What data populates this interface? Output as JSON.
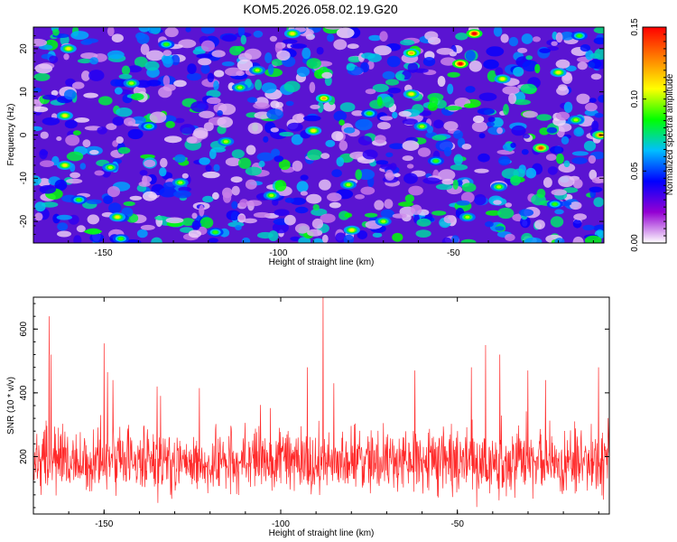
{
  "figure_title": "KOM5.2026.058.02.19.G20",
  "chart_data": [
    {
      "type": "heatmap",
      "xlabel": "Height of straight line (km)",
      "ylabel": "Frequency (Hz)",
      "xlim": [
        -170,
        -7
      ],
      "ylim": [
        -25,
        25
      ],
      "xticks": [
        -150,
        -100,
        -50
      ],
      "yticks": [
        -20,
        -10,
        0,
        10,
        20
      ],
      "colorbar": {
        "label": "Normalized spectral amplitude",
        "range": [
          0.0,
          0.15
        ],
        "ticks": [
          "0.00",
          "0.05",
          "0.10",
          "0.15"
        ],
        "colors": [
          "#ffffff",
          "#9400d3",
          "#0000ff",
          "#00bfff",
          "#00ff00",
          "#ffff00",
          "#ff7f00",
          "#ff0000"
        ]
      },
      "peaks": [
        {
          "x": -44,
          "y": 23.5,
          "value": 0.15
        },
        {
          "x": -48,
          "y": 16.5,
          "value": 0.15
        },
        {
          "x": -25,
          "y": -3.0,
          "value": 0.14
        },
        {
          "x": -8,
          "y": 0.0,
          "value": 0.13
        },
        {
          "x": -62,
          "y": 19.0,
          "value": 0.12
        },
        {
          "x": -96,
          "y": 23.5,
          "value": 0.11
        },
        {
          "x": -87,
          "y": 8.5,
          "value": 0.12
        },
        {
          "x": -90,
          "y": 1.0,
          "value": 0.11
        },
        {
          "x": -160,
          "y": 20.0,
          "value": 0.11
        },
        {
          "x": -161,
          "y": 4.5,
          "value": 0.11
        },
        {
          "x": -161,
          "y": -7.0,
          "value": 0.11
        },
        {
          "x": -148,
          "y": -7.5,
          "value": 0.1
        },
        {
          "x": -146,
          "y": -19.0,
          "value": 0.11
        },
        {
          "x": -111,
          "y": 11.0,
          "value": 0.1
        },
        {
          "x": -106,
          "y": 15.0,
          "value": 0.1
        },
        {
          "x": -115,
          "y": -1.5,
          "value": 0.1
        },
        {
          "x": -128,
          "y": -11.0,
          "value": 0.1
        },
        {
          "x": -102,
          "y": -14.0,
          "value": 0.1
        },
        {
          "x": -79,
          "y": -22.0,
          "value": 0.11
        },
        {
          "x": -70,
          "y": -20.0,
          "value": 0.1
        },
        {
          "x": -62,
          "y": 9.5,
          "value": 0.11
        },
        {
          "x": -59,
          "y": 2.0,
          "value": 0.1
        },
        {
          "x": -36,
          "y": 13.0,
          "value": 0.11
        },
        {
          "x": -20,
          "y": 14.5,
          "value": 0.11
        },
        {
          "x": -37,
          "y": -12.0,
          "value": 0.1
        },
        {
          "x": -46,
          "y": -19.0,
          "value": 0.1
        },
        {
          "x": -80,
          "y": -11.5,
          "value": 0.1
        },
        {
          "x": -142,
          "y": 12.0,
          "value": 0.1
        },
        {
          "x": -137,
          "y": 2.0,
          "value": 0.09
        },
        {
          "x": -74,
          "y": 5.0,
          "value": 0.09
        },
        {
          "x": -15,
          "y": 3.5,
          "value": 0.1
        },
        {
          "x": -14,
          "y": 23.0,
          "value": 0.09
        },
        {
          "x": -157,
          "y": -15.0,
          "value": 0.09
        },
        {
          "x": -21,
          "y": -16.0,
          "value": 0.09
        },
        {
          "x": -55,
          "y": -6.0,
          "value": 0.09
        },
        {
          "x": -132,
          "y": 21.0,
          "value": 0.09
        },
        {
          "x": -118,
          "y": -22.5,
          "value": 0.09
        },
        {
          "x": -145,
          "y": -24.0,
          "value": 0.09
        }
      ]
    },
    {
      "type": "line",
      "xlabel": "Height of straight line (km)",
      "ylabel": "SNR (10 * v/v)",
      "xlim": [
        -170,
        -7
      ],
      "ylim": [
        20,
        700
      ],
      "xticks": [
        -150,
        -100,
        -50
      ],
      "yticks": [
        200,
        400,
        600
      ],
      "color": "#ff2a2a",
      "baseline": 180,
      "spikes": [
        {
          "x": -165.5,
          "y": 640
        },
        {
          "x": -165.0,
          "y": 520
        },
        {
          "x": -150.0,
          "y": 555
        },
        {
          "x": -149.0,
          "y": 465
        },
        {
          "x": -147.5,
          "y": 440
        },
        {
          "x": -88.0,
          "y": 700
        },
        {
          "x": -92.5,
          "y": 480
        },
        {
          "x": -42.0,
          "y": 550
        },
        {
          "x": -62.0,
          "y": 470
        },
        {
          "x": -46.0,
          "y": 480
        },
        {
          "x": -38.0,
          "y": 520
        },
        {
          "x": -30.0,
          "y": 470
        },
        {
          "x": -10.0,
          "y": 480
        },
        {
          "x": -123.0,
          "y": 415
        },
        {
          "x": -85.0,
          "y": 430
        },
        {
          "x": -135.0,
          "y": 420
        },
        {
          "x": -25.0,
          "y": 440
        }
      ]
    }
  ]
}
